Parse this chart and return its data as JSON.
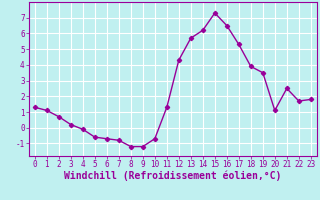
{
  "x": [
    0,
    1,
    2,
    3,
    4,
    5,
    6,
    7,
    8,
    9,
    10,
    11,
    12,
    13,
    14,
    15,
    16,
    17,
    18,
    19,
    20,
    21,
    22,
    23
  ],
  "y": [
    1.3,
    1.1,
    0.7,
    0.2,
    -0.1,
    -0.6,
    -0.7,
    -0.8,
    -1.2,
    -1.2,
    -0.7,
    1.3,
    4.3,
    5.7,
    6.2,
    7.3,
    6.5,
    5.3,
    3.9,
    3.5,
    1.1,
    2.5,
    1.7,
    1.8
  ],
  "line_color": "#990099",
  "marker": "D",
  "markersize": 2.2,
  "linewidth": 1.0,
  "bg_color": "#c0f0f0",
  "grid_color": "#aadddd",
  "xlabel": "Windchill (Refroidissement éolien,°C)",
  "ylim": [
    -1.8,
    8.0
  ],
  "xlim": [
    -0.5,
    23.5
  ],
  "yticks": [
    -1,
    0,
    1,
    2,
    3,
    4,
    5,
    6,
    7
  ],
  "xticks": [
    0,
    1,
    2,
    3,
    4,
    5,
    6,
    7,
    8,
    9,
    10,
    11,
    12,
    13,
    14,
    15,
    16,
    17,
    18,
    19,
    20,
    21,
    22,
    23
  ],
  "tick_color": "#990099",
  "label_color": "#990099",
  "tick_fontsize": 5.5,
  "xlabel_fontsize": 7.0
}
